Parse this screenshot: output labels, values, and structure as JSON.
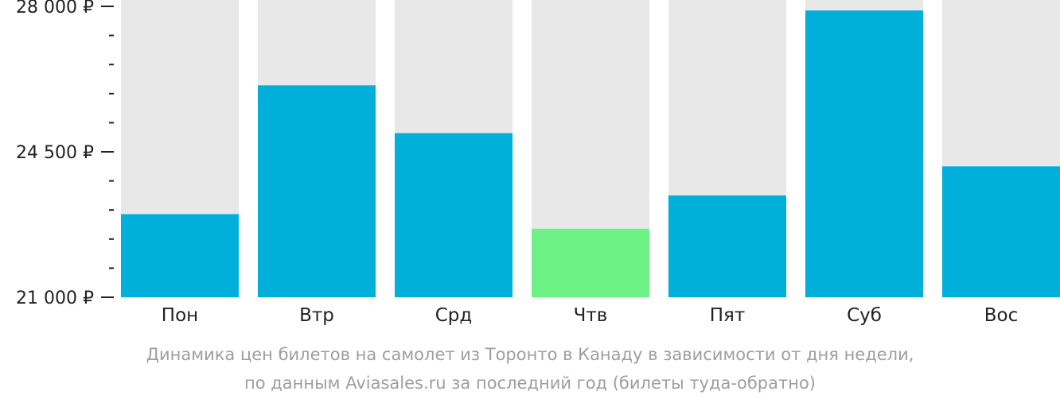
{
  "chart_data": {
    "type": "bar",
    "categories": [
      "Пон",
      "Втр",
      "Срд",
      "Чтв",
      "Пят",
      "Суб",
      "Вос"
    ],
    "values": [
      23000,
      26100,
      24950,
      22650,
      23450,
      27900,
      24150
    ],
    "highlight_index": 3,
    "ylim": [
      21000,
      28000
    ],
    "yticks": [
      {
        "value": 21000,
        "label": "21 000 ₽"
      },
      {
        "value": 24500,
        "label": "24 500 ₽"
      },
      {
        "value": 28000,
        "label": "28 000 ₽"
      }
    ],
    "minor_tick_step": 700,
    "colors": {
      "bar": "#00b0db",
      "highlight": "#6cf184",
      "track": "#e8e8e8",
      "axis": "#222222"
    }
  },
  "caption": {
    "line1": "Динамика цен билетов на самолет из Торонто в Канаду в зависимости от дня недели,",
    "line2": "по данным Aviasales.ru за последний год (билеты туда-обратно)"
  }
}
